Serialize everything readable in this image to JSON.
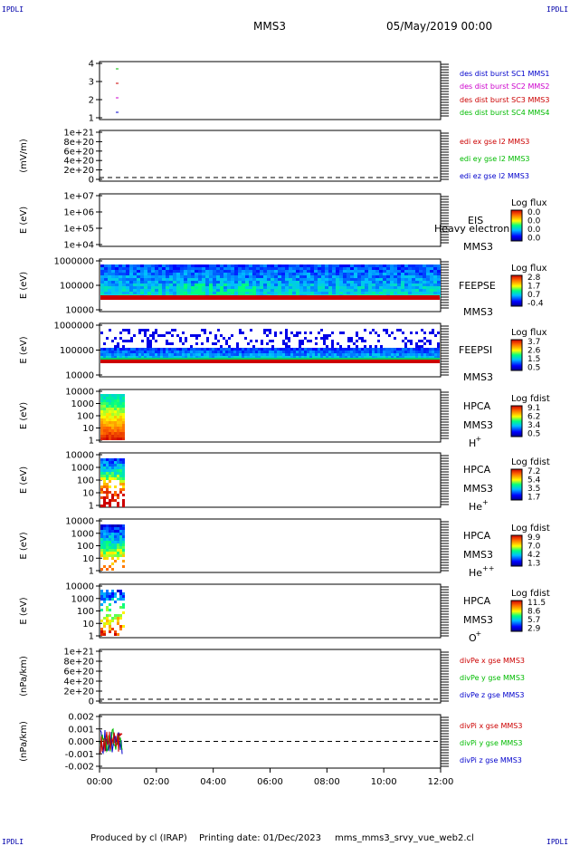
{
  "header": {
    "corner_label": "IPDLI",
    "title": "MMS3",
    "date": "05/May/2019 00:00"
  },
  "footer": {
    "produced_by": "Produced by cl (IRAP)",
    "printing_date": "Printing date: 01/Dec/2023",
    "filename": "mms_mms3_srvy_vue_web2.cl"
  },
  "colors": {
    "mms1": "#0000cc",
    "mms2": "#cc00cc",
    "mms3": "#cc0000",
    "mms4": "#00bb00",
    "x": "#cc0000",
    "y": "#00bb00",
    "z": "#0000cc"
  },
  "chart_data": [
    {
      "type": "scatter",
      "ylabel": "",
      "yticks": [
        "4",
        "3",
        "2",
        "1"
      ],
      "legend": [
        "des dist burst SC1 MMS1",
        "des dist burst SC2 MMS2",
        "des dist burst SC3 MMS3",
        "des dist burst SC4 MMS4"
      ],
      "legend_colors": [
        "#0000cc",
        "#cc00cc",
        "#cc0000",
        "#00bb00"
      ]
    },
    {
      "type": "line",
      "ylabel": "(mV/m)",
      "yticks": [
        "1e+21",
        "8e+20",
        "6e+20",
        "4e+20",
        "2e+20",
        "0"
      ],
      "legend": [
        "edi ex gse l2 MMS3",
        "edi ey gse l2 MMS3",
        "edi ez gse l2 MMS3"
      ],
      "legend_colors": [
        "#cc0000",
        "#00bb00",
        "#0000cc"
      ]
    },
    {
      "type": "heatmap",
      "ylabel": "E (eV)",
      "yticks": [
        "1e+07",
        "1e+06",
        "1e+05",
        "1e+04"
      ],
      "instrument": "EIS",
      "spacecraft": "MMS3",
      "overlay_text": "Heavy electron to",
      "colorbar_title": "Log flux",
      "colorbar_ticks": [
        "0.0",
        "0.0",
        "0.0",
        "0.0"
      ]
    },
    {
      "type": "heatmap",
      "ylabel": "E (eV)",
      "yticks": [
        "1000000",
        "100000",
        "10000"
      ],
      "instrument": "FEEPSE",
      "spacecraft": "MMS3",
      "colorbar_title": "Log flux",
      "colorbar_ticks": [
        "2.8",
        "1.7",
        "0.7",
        "-0.4"
      ]
    },
    {
      "type": "heatmap",
      "ylabel": "E (eV)",
      "yticks": [
        "1000000",
        "100000",
        "10000"
      ],
      "instrument": "FEEPSI",
      "spacecraft": "MMS3",
      "colorbar_title": "Log flux",
      "colorbar_ticks": [
        "3.7",
        "2.6",
        "1.5",
        "0.5"
      ]
    },
    {
      "type": "heatmap",
      "ylabel": "E (eV)",
      "yticks": [
        "10000",
        "1000",
        "100",
        "10",
        "1"
      ],
      "instrument": "HPCA",
      "spacecraft": "MMS3",
      "species": "H",
      "species_sup": "+",
      "colorbar_title": "Log fdist",
      "colorbar_ticks": [
        "9.1",
        "6.2",
        "3.4",
        "0.5"
      ]
    },
    {
      "type": "heatmap",
      "ylabel": "E (eV)",
      "yticks": [
        "10000",
        "1000",
        "100",
        "10",
        "1"
      ],
      "instrument": "HPCA",
      "spacecraft": "MMS3",
      "species": "He",
      "species_sup": "+",
      "colorbar_title": "Log fdist",
      "colorbar_ticks": [
        "7.2",
        "5.4",
        "3.5",
        "1.7"
      ]
    },
    {
      "type": "heatmap",
      "ylabel": "E (eV)",
      "yticks": [
        "10000",
        "1000",
        "100",
        "10",
        "1"
      ],
      "instrument": "HPCA",
      "spacecraft": "MMS3",
      "species": "He",
      "species_sup": "++",
      "colorbar_title": "Log fdist",
      "colorbar_ticks": [
        "9.9",
        "7.0",
        "4.2",
        "1.3"
      ]
    },
    {
      "type": "heatmap",
      "ylabel": "E (eV)",
      "yticks": [
        "10000",
        "1000",
        "100",
        "10",
        "1"
      ],
      "instrument": "HPCA",
      "spacecraft": "MMS3",
      "species": "O",
      "species_sup": "+",
      "colorbar_title": "Log fdist",
      "colorbar_ticks": [
        "11.5",
        "8.6",
        "5.7",
        "2.9"
      ]
    },
    {
      "type": "line",
      "ylabel": "(nPa/km)",
      "yticks": [
        "1e+21",
        "8e+20",
        "6e+20",
        "4e+20",
        "2e+20",
        "0"
      ],
      "legend": [
        "divPe x gse MMS3",
        "divPe y gse MMS3",
        "divPe z gse MMS3"
      ],
      "legend_colors": [
        "#cc0000",
        "#00bb00",
        "#0000cc"
      ]
    },
    {
      "type": "line",
      "ylabel": "(nPa/km)",
      "yticks": [
        "0.002",
        "0.001",
        "0.000",
        "-0.001",
        "-0.002"
      ],
      "legend": [
        "divPi x gse MMS3",
        "divPi y gse MMS3",
        "divPi z gse MMS3"
      ],
      "legend_colors": [
        "#cc0000",
        "#00bb00",
        "#0000cc"
      ]
    }
  ],
  "x_axis": {
    "ticks": [
      "00:00",
      "02:00",
      "04:00",
      "06:00",
      "08:00",
      "10:00",
      "12:00"
    ]
  }
}
